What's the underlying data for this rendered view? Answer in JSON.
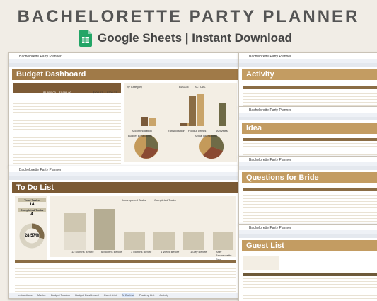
{
  "header": {
    "title": "BACHELORETTE PARTY PLANNER",
    "subtitle": "Google Sheets | Instant Download"
  },
  "windows": [
    {
      "app_title": "Bachelorette Party Planner",
      "sheet_title": "Budget Dashboard"
    },
    {
      "app_title": "Bachelorette Party Planner",
      "sheet_title": "To Do List"
    },
    {
      "app_title": "Bachelorette Party Planner",
      "sheet_title": "Activity"
    },
    {
      "app_title": "Bachelorette Party Planner",
      "sheet_title": "Idea"
    },
    {
      "app_title": "Bachelorette Party Planner",
      "sheet_title": "Questions for Bride"
    },
    {
      "app_title": "Bachelorette Party Planner",
      "sheet_title": "Guest List"
    }
  ],
  "budget": {
    "chart_title": "By Category",
    "legend": [
      "BUDGET",
      "ACTUAL"
    ],
    "categories": [
      "Accommodation",
      "Transportation",
      "Food & Drinks",
      "Activities"
    ],
    "totals": [
      "$1,800.00",
      "$1,995.00",
      "$208.67",
      "$206.33"
    ],
    "breakdown": [
      "Budget Breakdown",
      "Actual Breakdown"
    ]
  },
  "todo": {
    "total_label": "Total Tasks",
    "total": "14",
    "completed_label": "Completed Tasks",
    "completed": "4",
    "percent": "28.57%",
    "legend": [
      "Incompleted Tasks",
      "Completed Tasks"
    ],
    "columns": [
      "12 Months Before",
      "6 Months Before",
      "3 Months Before",
      "1 Week Before",
      "1 Day Before",
      "After Bachelorette Day"
    ]
  },
  "tabs": [
    "Instructions",
    "Master",
    "Budget Tracker",
    "Budget Dashboard",
    "Guest List",
    "To Do List",
    "Packing List",
    "Activity"
  ]
}
